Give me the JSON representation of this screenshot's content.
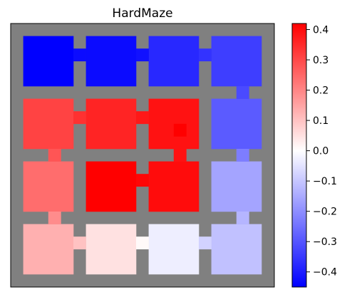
{
  "chart_data": {
    "type": "heatmap",
    "title": "HardMaze",
    "xlabel": "",
    "ylabel": "",
    "colormap": "bwr",
    "color_min": -0.45,
    "color_max": 0.42,
    "grid": false,
    "background_color": "#808080",
    "colorbar": {
      "ticks": [
        0.4,
        0.3,
        0.2,
        0.1,
        0.0,
        -0.1,
        -0.2,
        -0.3,
        -0.4
      ],
      "tick_labels": [
        "0.4",
        "0.3",
        "0.2",
        "0.1",
        "0.0",
        "−0.1",
        "−0.2",
        "−0.3",
        "−0.4"
      ]
    },
    "rooms": [
      [
        -0.45,
        -0.43,
        -0.38,
        -0.34
      ],
      [
        0.31,
        0.36,
        0.39,
        -0.29
      ],
      [
        0.24,
        0.42,
        0.4,
        -0.16
      ],
      [
        0.13,
        0.05,
        -0.03,
        -0.11
      ]
    ],
    "horizontal_doors": [
      [
        -0.43,
        -0.42,
        -0.36
      ],
      [
        0.34,
        0.38,
        null
      ],
      [
        null,
        0.41,
        null
      ],
      [
        0.1,
        0.01,
        -0.08
      ]
    ],
    "vertical_doors": [
      [
        null,
        null,
        null,
        -0.32
      ],
      [
        0.28,
        null,
        0.39,
        -0.23
      ],
      [
        0.19,
        null,
        null,
        -0.13
      ]
    ],
    "highlight_cells": [
      {
        "room": [
          1,
          2
        ],
        "value": 0.42
      }
    ]
  }
}
